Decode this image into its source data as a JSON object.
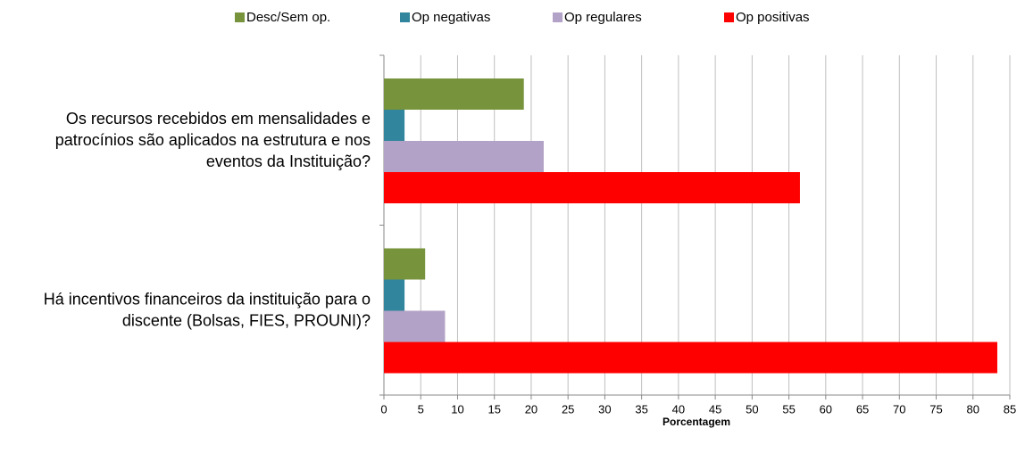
{
  "chart_data": {
    "type": "hbar",
    "categories": [
      "Os recursos recebidos em mensalidades e patrocínios são aplicados na estrutura e nos eventos da Instituição?",
      "Há incentivos financeiros da instituição para o discente (Bolsas, FIES, PROUNI)?"
    ],
    "series": [
      {
        "name": "Desc/Sem op.",
        "color": "#77933c",
        "values": [
          19.0,
          5.6
        ]
      },
      {
        "name": "Op negativas",
        "color": "#31859c",
        "values": [
          2.8,
          2.8
        ]
      },
      {
        "name": "Op regulares",
        "color": "#b3a2c7",
        "values": [
          21.7,
          8.3
        ]
      },
      {
        "name": "Op positivas",
        "color": "#ff0000",
        "values": [
          56.5,
          83.3
        ]
      }
    ],
    "xlabel": "Porcentagem",
    "xlim": [
      0,
      85
    ],
    "xticks": [
      0,
      5,
      10,
      15,
      20,
      25,
      30,
      35,
      40,
      45,
      50,
      55,
      60,
      65,
      70,
      75,
      80,
      85
    ],
    "grid": true,
    "legend": "top"
  }
}
